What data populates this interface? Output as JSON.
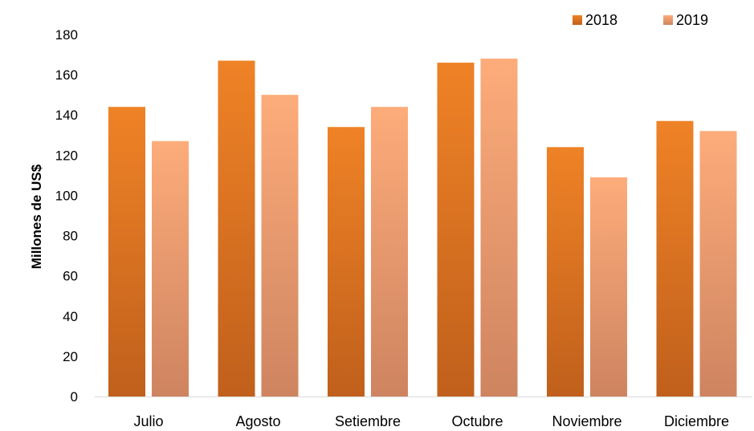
{
  "chart_data": {
    "type": "bar",
    "title": "",
    "xlabel": "",
    "ylabel": "Millones de US$",
    "categories": [
      "Julio",
      "Agosto",
      "Setiembre",
      "Octubre",
      "Noviembre",
      "Diciembre"
    ],
    "series": [
      {
        "name": "2018",
        "values": [
          144,
          167,
          134,
          166,
          124,
          137
        ],
        "color_top": "#EF8226",
        "color_bottom": "#C0601C"
      },
      {
        "name": "2019",
        "values": [
          127,
          150,
          144,
          168,
          109,
          132
        ],
        "color_top": "#FDAC7A",
        "color_bottom": "#CE8460"
      }
    ],
    "ylim": [
      0,
      180
    ],
    "yticks": [
      "0",
      "20",
      "40",
      "60",
      "80",
      "100",
      "120",
      "140",
      "160",
      "180"
    ],
    "grid": false,
    "legend_position": "top-right",
    "axis_color": "#D9D9D9"
  }
}
